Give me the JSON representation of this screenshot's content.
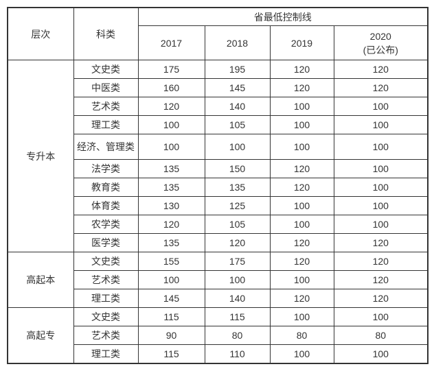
{
  "chart_data": {
    "type": "table",
    "title": "省最低控制线",
    "header": {
      "level": "层次",
      "category": "科类",
      "span_title": "省最低控制线",
      "years": [
        "2017",
        "2018",
        "2019",
        "2020"
      ],
      "year_2020_note": "(已公布)"
    },
    "groups": [
      {
        "level": "专升本",
        "rows": [
          {
            "category": "文史类",
            "values": [
              175,
              195,
              120,
              120
            ]
          },
          {
            "category": "中医类",
            "values": [
              160,
              145,
              120,
              120
            ]
          },
          {
            "category": "艺术类",
            "values": [
              120,
              140,
              100,
              100
            ]
          },
          {
            "category": "理工类",
            "values": [
              100,
              105,
              100,
              100
            ]
          },
          {
            "category": "经济、管理类",
            "values": [
              100,
              100,
              100,
              100
            ]
          },
          {
            "category": "法学类",
            "values": [
              135,
              150,
              120,
              100
            ]
          },
          {
            "category": "教育类",
            "values": [
              135,
              135,
              120,
              100
            ]
          },
          {
            "category": "体育类",
            "values": [
              130,
              125,
              100,
              100
            ]
          },
          {
            "category": "农学类",
            "values": [
              120,
              105,
              100,
              100
            ]
          },
          {
            "category": "医学类",
            "values": [
              135,
              120,
              120,
              120
            ]
          }
        ]
      },
      {
        "level": "高起本",
        "rows": [
          {
            "category": "文史类",
            "values": [
              155,
              175,
              120,
              120
            ]
          },
          {
            "category": "艺术类",
            "values": [
              100,
              100,
              100,
              120
            ]
          },
          {
            "category": "理工类",
            "values": [
              145,
              140,
              120,
              120
            ]
          }
        ]
      },
      {
        "level": "高起专",
        "rows": [
          {
            "category": "文史类",
            "values": [
              115,
              115,
              100,
              100
            ]
          },
          {
            "category": "艺术类",
            "values": [
              90,
              80,
              80,
              80
            ]
          },
          {
            "category": "理工类",
            "values": [
              115,
              110,
              100,
              100
            ]
          }
        ]
      }
    ],
    "colors": {
      "border": "#333333",
      "text": "#333333",
      "background": "#ffffff"
    },
    "layout": {
      "grid": "full-borders",
      "text_align": "center"
    }
  }
}
